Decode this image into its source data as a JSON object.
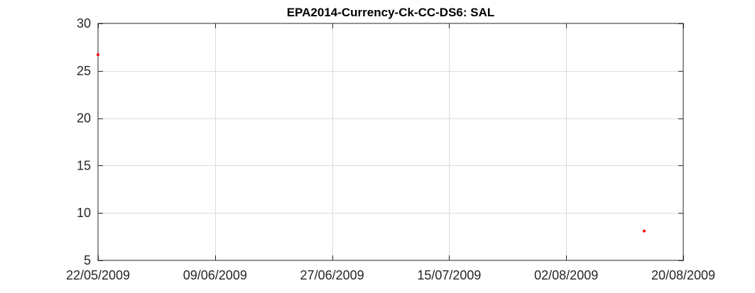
{
  "chart_data": {
    "type": "scatter",
    "title": "EPA2014-Currency-Ck-CC-DS6: SAL",
    "xlabel": "",
    "ylabel": "",
    "x_type": "date",
    "xlim": [
      "2009-05-22",
      "2009-08-20"
    ],
    "ylim": [
      5,
      30
    ],
    "x_ticks": [
      "2009-05-22",
      "2009-06-09",
      "2009-06-27",
      "2009-07-15",
      "2009-08-02",
      "2009-08-20"
    ],
    "x_tick_labels": [
      "22/05/2009",
      "09/06/2009",
      "27/06/2009",
      "15/07/2009",
      "02/08/2009",
      "20/08/2009"
    ],
    "y_ticks": [
      5,
      10,
      15,
      20,
      25,
      30
    ],
    "y_tick_labels": [
      "5",
      "10",
      "15",
      "20",
      "25",
      "30"
    ],
    "grid": true,
    "series": [
      {
        "color": "#ff0000",
        "marker": "dot",
        "points": [
          {
            "x": "2009-05-22",
            "y": 26.7
          },
          {
            "x": "2009-08-14",
            "y": 8.1
          }
        ]
      }
    ]
  }
}
